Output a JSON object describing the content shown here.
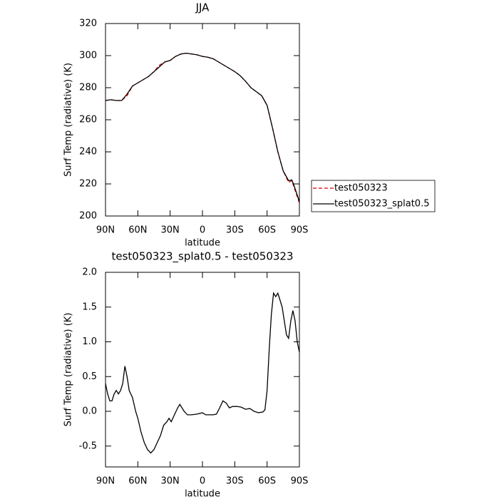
{
  "chart_data": [
    {
      "type": "line",
      "title": "JJA",
      "x_label": "latitude",
      "y_label": "Surf Temp (radiative) (K)",
      "x": [
        90,
        85,
        80,
        75,
        70,
        65,
        60,
        55,
        50,
        45,
        40,
        35,
        30,
        25,
        20,
        15,
        10,
        5,
        0,
        -5,
        -10,
        -15,
        -20,
        -25,
        -30,
        -35,
        -40,
        -45,
        -50,
        -55,
        -60,
        -65,
        -70,
        -75,
        -80,
        -83,
        -85,
        -90
      ],
      "series": [
        {
          "name": "test050323",
          "color": "#e00000",
          "style": "dashed",
          "values": [
            272,
            272.5,
            272,
            272,
            275,
            281,
            283,
            285,
            287,
            290,
            294,
            296,
            297,
            299.5,
            301,
            301.5,
            301,
            300.5,
            299.5,
            299,
            298,
            296,
            294,
            292,
            290,
            287.5,
            284,
            280,
            277.5,
            275,
            269,
            255,
            240,
            228,
            221,
            222,
            218,
            208
          ]
        },
        {
          "name": "test050323_splat0.5",
          "color": "#000000",
          "style": "solid",
          "values": [
            272,
            272.5,
            272,
            272,
            276,
            281,
            283,
            285,
            287,
            290,
            293,
            296,
            297,
            299.5,
            301,
            301.5,
            301,
            300.5,
            299.5,
            299,
            298,
            296,
            294,
            292,
            290,
            287.5,
            284,
            280,
            277.5,
            275,
            269,
            255,
            240,
            228,
            222,
            222.5,
            219,
            209
          ]
        }
      ],
      "xlim": [
        90,
        -90
      ],
      "xticks": [
        {
          "value": 90,
          "label": "90N"
        },
        {
          "value": 60,
          "label": "60N"
        },
        {
          "value": 30,
          "label": "30N"
        },
        0,
        {
          "value": -30,
          "label": "30S"
        },
        {
          "value": -60,
          "label": "60S"
        },
        {
          "value": -90,
          "label": "90S"
        }
      ],
      "ylim": [
        200,
        320
      ],
      "yticks": [
        200,
        220,
        240,
        260,
        280,
        300,
        320
      ],
      "legend": "outside-right"
    },
    {
      "type": "line",
      "title": "test050323_splat0.5 - test050323",
      "x_label": "latitude",
      "y_label": "Surf Temp (radiative) (K)",
      "x": [
        90,
        88,
        86,
        84,
        82,
        80,
        78,
        76,
        74,
        72,
        70,
        68,
        65,
        62,
        60,
        57,
        54,
        51,
        48,
        45,
        42,
        39,
        36,
        33,
        31,
        29,
        26,
        23,
        21,
        19,
        17,
        14,
        10,
        5,
        0,
        -3,
        -6,
        -10,
        -13,
        -16,
        -19,
        -22,
        -25,
        -28,
        -32,
        -36,
        -40,
        -44,
        -48,
        -52,
        -56,
        -58,
        -60,
        -62,
        -64,
        -66,
        -68,
        -70,
        -72,
        -74,
        -76,
        -78,
        -80,
        -82,
        -84,
        -86,
        -88,
        -90
      ],
      "series": [
        {
          "color": "#000000",
          "style": "solid",
          "values": [
            0.4,
            0.25,
            0.15,
            0.15,
            0.25,
            0.3,
            0.25,
            0.3,
            0.4,
            0.65,
            0.5,
            0.3,
            0.2,
            0.0,
            -0.1,
            -0.3,
            -0.45,
            -0.55,
            -0.6,
            -0.55,
            -0.45,
            -0.35,
            -0.2,
            -0.15,
            -0.1,
            -0.15,
            -0.05,
            0.05,
            0.1,
            0.05,
            0.0,
            -0.05,
            -0.05,
            -0.04,
            -0.02,
            -0.05,
            -0.05,
            -0.05,
            -0.04,
            0.05,
            0.15,
            0.12,
            0.05,
            0.07,
            0.07,
            0.06,
            0.03,
            0.04,
            0.0,
            -0.02,
            -0.01,
            0.02,
            0.3,
            0.9,
            1.4,
            1.7,
            1.65,
            1.7,
            1.6,
            1.5,
            1.3,
            1.1,
            1.05,
            1.3,
            1.45,
            1.3,
            1.0,
            0.85
          ]
        }
      ],
      "xlim": [
        90,
        -90
      ],
      "xticks": [
        {
          "value": 90,
          "label": "90N"
        },
        {
          "value": 60,
          "label": "60N"
        },
        {
          "value": 30,
          "label": "30N"
        },
        0,
        {
          "value": -30,
          "label": "30S"
        },
        {
          "value": -60,
          "label": "60S"
        },
        {
          "value": -90,
          "label": "90S"
        }
      ],
      "ylim": [
        -0.8,
        2.0
      ],
      "yticks": [
        -0.5,
        {
          "value": 0,
          "label": "0.0"
        },
        0.5,
        {
          "value": 1,
          "label": "1.0"
        },
        1.5,
        {
          "value": 2,
          "label": "2.0"
        }
      ]
    }
  ]
}
